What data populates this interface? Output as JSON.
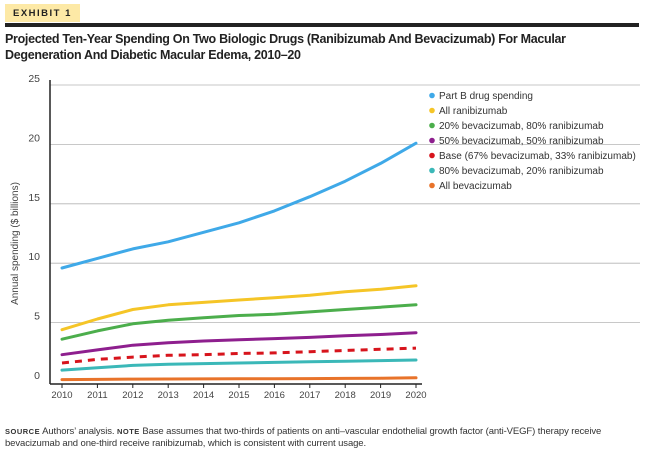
{
  "exhibit_label": "EXHIBIT 1",
  "chart_data": {
    "type": "line",
    "title": "Projected Ten-Year Spending On Two Biologic Drugs (Ranibizumab And Bevacizumab) For Macular Degeneration And Diabetic Macular Edema, 2010–20",
    "xlabel": "",
    "ylabel": "Annual spending ($ billions)",
    "x": [
      2010,
      2011,
      2012,
      2013,
      2014,
      2015,
      2016,
      2017,
      2018,
      2019,
      2020
    ],
    "ylim": [
      0,
      25
    ],
    "yticks": [
      0,
      5,
      10,
      15,
      20,
      25
    ],
    "grid": true,
    "legend_placement": "top-right",
    "series": [
      {
        "name": "Part B drug spending",
        "color": "#3fa9e8",
        "dashed": false,
        "values": [
          9.6,
          10.4,
          11.2,
          11.8,
          12.6,
          13.4,
          14.4,
          15.6,
          16.9,
          18.4,
          20.1
        ]
      },
      {
        "name": "All ranibizumab",
        "color": "#f5c527",
        "dashed": false,
        "values": [
          4.4,
          5.3,
          6.1,
          6.5,
          6.7,
          6.9,
          7.1,
          7.3,
          7.6,
          7.8,
          8.1
        ]
      },
      {
        "name": "20% bevacizumab, 80% ranibizumab",
        "color": "#4cae4c",
        "dashed": false,
        "values": [
          3.6,
          4.3,
          4.9,
          5.2,
          5.4,
          5.6,
          5.7,
          5.9,
          6.1,
          6.3,
          6.5
        ]
      },
      {
        "name": "50% bevacizumab, 50% ranibizumab",
        "color": "#8e1f8e",
        "dashed": false,
        "values": [
          2.3,
          2.7,
          3.1,
          3.3,
          3.45,
          3.55,
          3.65,
          3.75,
          3.9,
          4.0,
          4.15
        ]
      },
      {
        "name": "Base (67% bevacizumab, 33% ranibizumab)",
        "color": "#d7141c",
        "dashed": true,
        "values": [
          1.6,
          1.9,
          2.1,
          2.25,
          2.3,
          2.4,
          2.45,
          2.55,
          2.65,
          2.75,
          2.85
        ]
      },
      {
        "name": "80% bevacizumab, 20% ranibizumab",
        "color": "#3bb8b8",
        "dashed": false,
        "values": [
          1.0,
          1.2,
          1.4,
          1.5,
          1.55,
          1.6,
          1.65,
          1.7,
          1.75,
          1.8,
          1.85
        ]
      },
      {
        "name": "All bevacizumab",
        "color": "#e8732a",
        "dashed": false,
        "values": [
          0.2,
          0.22,
          0.24,
          0.25,
          0.26,
          0.27,
          0.28,
          0.29,
          0.3,
          0.32,
          0.35
        ]
      }
    ]
  },
  "footnote": {
    "source_label": "Source",
    "source_text": " Authors’ analysis. ",
    "note_label": "Note",
    "note_text": " Base assumes that two-thirds of patients on anti–vascular endothelial growth factor (anti-VEGF) therapy receive bevacizumab and one-third receive ranibizumab, which is consistent with current usage."
  }
}
